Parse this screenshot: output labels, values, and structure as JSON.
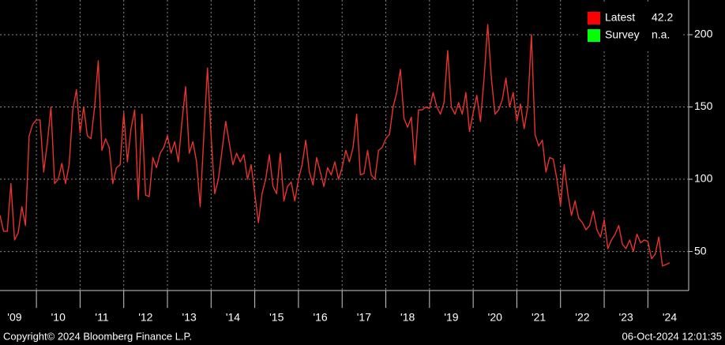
{
  "chart_data": {
    "type": "line",
    "categories": [
      null,
      null,
      null,
      null,
      "'09",
      null,
      null,
      null,
      null,
      null,
      null,
      null,
      null,
      null,
      null,
      null,
      "'10",
      null,
      null,
      null,
      null,
      null,
      null,
      null,
      null,
      null,
      null,
      null,
      "'11",
      null,
      null,
      null,
      null,
      null,
      null,
      null,
      null,
      null,
      null,
      null,
      "'12",
      null,
      null,
      null,
      null,
      null,
      null,
      null,
      null,
      null,
      null,
      null,
      "'13",
      null,
      null,
      null,
      null,
      null,
      null,
      null,
      null,
      null,
      null,
      null,
      "'14",
      null,
      null,
      null,
      null,
      null,
      null,
      null,
      null,
      null,
      null,
      null,
      "'15",
      null,
      null,
      null,
      null,
      null,
      null,
      null,
      null,
      null,
      null,
      null,
      "'16",
      null,
      null,
      null,
      null,
      null,
      null,
      null,
      null,
      null,
      null,
      null,
      "'17",
      null,
      null,
      null,
      null,
      null,
      null,
      null,
      null,
      null,
      null,
      null,
      "'18",
      null,
      null,
      null,
      null,
      null,
      null,
      null,
      null,
      null,
      null,
      null,
      "'19",
      null,
      null,
      null,
      null,
      null,
      null,
      null,
      null,
      null,
      null,
      null,
      "'20",
      null,
      null,
      null,
      null,
      null,
      null,
      null,
      null,
      null,
      null,
      null,
      "'21",
      null,
      null,
      null,
      null,
      null,
      null,
      null,
      null,
      null,
      null,
      null,
      "'22",
      null,
      null,
      null,
      null,
      null,
      null,
      null,
      null,
      null,
      null,
      null,
      "'23",
      null,
      null,
      null,
      null,
      null,
      null,
      null,
      null,
      null,
      null,
      null,
      "'24"
    ],
    "series": [
      {
        "name": "Latest",
        "color": "#e8332e",
        "values": [
          75,
          64,
          64,
          97,
          58,
          63,
          81,
          68,
          130,
          138,
          141,
          141,
          105,
          125,
          150,
          97,
          100,
          111,
          97,
          110,
          148,
          162,
          132,
          150,
          130,
          128,
          150,
          182,
          120,
          128,
          122,
          97,
          108,
          110,
          146,
          112,
          135,
          148,
          86,
          145,
          89,
          88,
          115,
          108,
          118,
          122,
          130,
          118,
          126,
          112,
          140,
          164,
          118,
          126,
          112,
          81,
          130,
          177,
          130,
          90,
          100,
          120,
          140,
          125,
          110,
          118,
          112,
          117,
          100,
          110,
          90,
          70,
          90,
          100,
          117,
          95,
          90,
          118,
          85,
          95,
          98,
          85,
          100,
          110,
          127,
          105,
          96,
          115,
          105,
          95,
          108,
          103,
          112,
          100,
          108,
          120,
          112,
          122,
          145,
          103,
          104,
          120,
          103,
          100,
          120,
          122,
          128,
          131,
          150,
          160,
          176,
          142,
          136,
          143,
          110,
          148,
          148,
          150,
          149,
          160,
          150,
          145,
          153,
          189,
          150,
          145,
          153,
          145,
          160,
          133,
          146,
          158,
          140,
          170,
          207,
          170,
          145,
          148,
          155,
          170,
          150,
          160,
          140,
          152,
          135,
          150,
          200,
          131,
          123,
          127,
          105,
          115,
          114,
          100,
          82,
          110,
          90,
          75,
          85,
          73,
          70,
          65,
          68,
          78,
          65,
          60,
          72,
          52,
          58,
          62,
          68,
          55,
          52,
          58,
          50,
          62,
          56,
          58,
          57,
          45,
          48,
          60,
          40,
          41,
          42.2
        ]
      }
    ],
    "legend": [
      {
        "name": "Latest",
        "value": 42.2,
        "color": "#ff0000"
      },
      {
        "name": "Survey",
        "value": "n.a.",
        "color": "#00ff00"
      }
    ],
    "ylim": [
      23,
      224
    ],
    "yticks": [
      50,
      100,
      150,
      200
    ],
    "grid": true,
    "copyright": "Copyright© 2024 Bloomberg Finance L.P.",
    "timestamp": "06-Oct-2024 12:01:35"
  }
}
